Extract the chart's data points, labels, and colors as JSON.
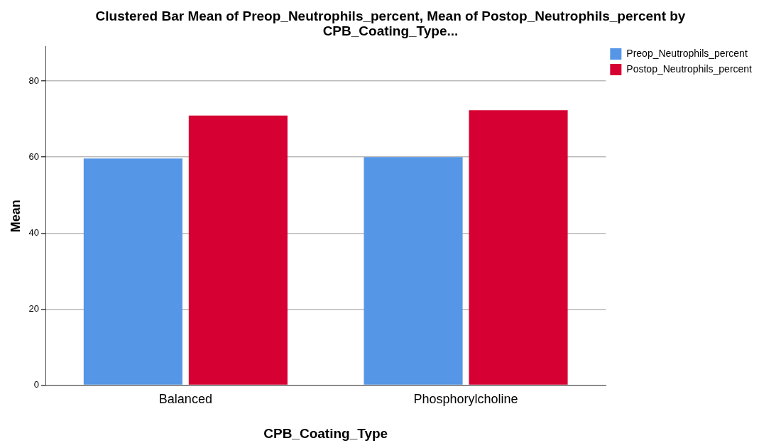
{
  "chart_data": {
    "type": "bar",
    "title": "Clustered Bar Mean of Preop_Neutrophils_percent, Mean of Postop_Neutrophils_percent by CPB_Coating_Type...",
    "xlabel": "CPB_Coating_Type",
    "ylabel": "Mean",
    "categories": [
      "Balanced",
      "Phosphorylcholine"
    ],
    "series": [
      {
        "name": "Preop_Neutrophils_percent",
        "color": "#5596e6",
        "values": [
          59.6,
          60.0
        ]
      },
      {
        "name": "Postop_Neutrophils_percent",
        "color": "#d60032",
        "values": [
          70.9,
          72.3
        ]
      }
    ],
    "ylim": [
      0,
      89
    ],
    "yticks": [
      0,
      20,
      40,
      60,
      80
    ],
    "grid": "y",
    "legend": "top right"
  }
}
